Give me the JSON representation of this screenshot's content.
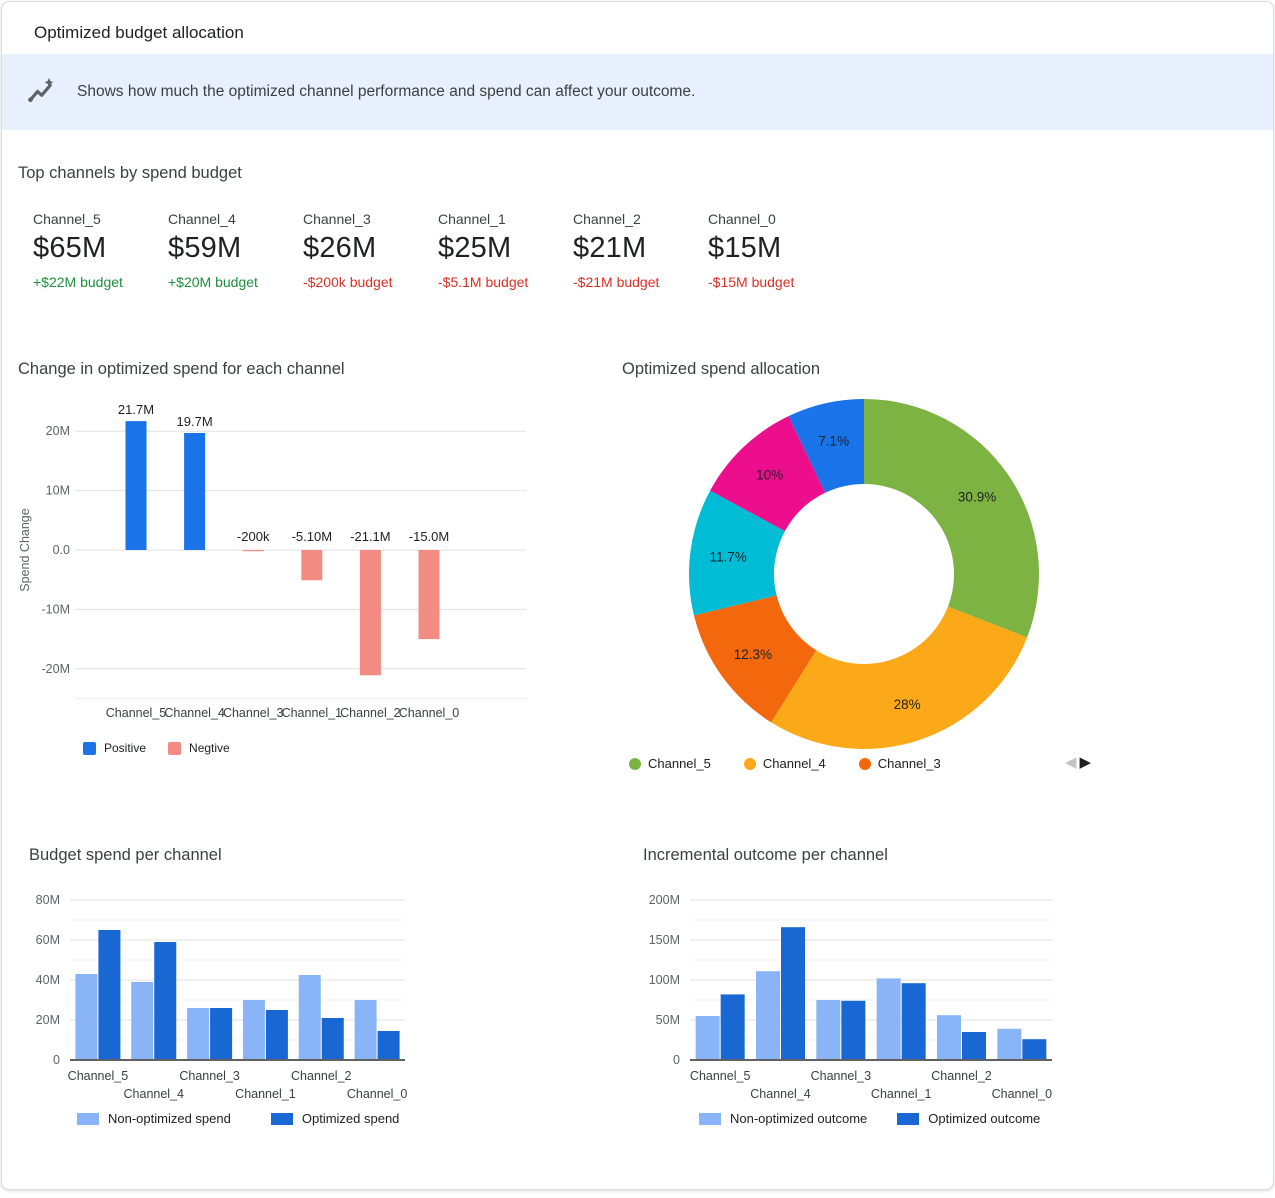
{
  "header": {
    "title": "Optimized budget allocation"
  },
  "banner": {
    "icon": "insights-icon",
    "text": "Shows how much the optimized channel performance and spend can affect your outcome."
  },
  "top_channels": {
    "title": "Top channels by spend budget",
    "items": [
      {
        "name": "Channel_5",
        "value": "$65M",
        "delta": "+$22M budget",
        "direction": "positive"
      },
      {
        "name": "Channel_4",
        "value": "$59M",
        "delta": "+$20M budget",
        "direction": "positive"
      },
      {
        "name": "Channel_3",
        "value": "$26M",
        "delta": "-$200k budget",
        "direction": "negative"
      },
      {
        "name": "Channel_1",
        "value": "$25M",
        "delta": "-$5.1M budget",
        "direction": "negative"
      },
      {
        "name": "Channel_2",
        "value": "$21M",
        "delta": "-$21M budget",
        "direction": "negative"
      },
      {
        "name": "Channel_0",
        "value": "$15M",
        "delta": "-$15M budget",
        "direction": "negative"
      }
    ]
  },
  "pager": {
    "prev": "◀",
    "next": "▶"
  },
  "chart_data": [
    {
      "id": "spend_change",
      "type": "bar",
      "title": "Change in optimized spend for each channel",
      "ylabel": "Spend Change",
      "unit": "M",
      "ylim": [
        -25,
        25
      ],
      "grid": true,
      "categories": [
        "Channel_5",
        "Channel_4",
        "Channel_3",
        "Channel_1",
        "Channel_2",
        "Channel_0"
      ],
      "values": [
        21.7,
        19.7,
        -0.2,
        -5.1,
        -21.1,
        -15.0
      ],
      "value_labels": [
        "21.7M",
        "19.7M",
        "-200k",
        "-5.10M",
        "-21.1M",
        "-15.0M"
      ],
      "yticks": [
        {
          "v": 20,
          "label": "20M"
        },
        {
          "v": 10,
          "label": "10M"
        },
        {
          "v": 0,
          "label": "0.0"
        },
        {
          "v": -10,
          "label": "-10M"
        },
        {
          "v": -20,
          "label": "-20M"
        }
      ],
      "legend": [
        {
          "label": "Positive",
          "color": "#1A73E8"
        },
        {
          "label": "Negtive",
          "color": "#F28B82"
        }
      ]
    },
    {
      "id": "spend_allocation",
      "type": "pie",
      "title": "Optimized spend allocation",
      "donut": true,
      "slices": [
        {
          "label": "Channel_5",
          "pct": 30.9,
          "pct_label": "30.9%",
          "color": "#7CB342"
        },
        {
          "label": "Channel_4",
          "pct": 28.0,
          "pct_label": "28%",
          "color": "#FBA919"
        },
        {
          "label": "Channel_3",
          "pct": 12.3,
          "pct_label": "12.3%",
          "color": "#F3680D"
        },
        {
          "label": "",
          "pct": 11.7,
          "pct_label": "11.7%",
          "color": "#00BCD4"
        },
        {
          "label": "",
          "pct": 10.0,
          "pct_label": "10%",
          "color": "#EC0E8C"
        },
        {
          "label": "",
          "pct": 7.1,
          "pct_label": "7.1%",
          "color": "#1A73E8"
        }
      ],
      "legend": [
        "Channel_5",
        "Channel_4",
        "Channel_3"
      ],
      "legend_position": "bottom"
    },
    {
      "id": "budget_spend",
      "type": "bar",
      "title": "Budget spend per channel",
      "unit": "M",
      "ylim": [
        0,
        80
      ],
      "grid": true,
      "categories": [
        "Channel_5",
        "Channel_4",
        "Channel_3",
        "Channel_1",
        "Channel_2",
        "Channel_0"
      ],
      "series": [
        {
          "name": "Non-optimized spend",
          "color": "#8AB4F8",
          "values": [
            43,
            39,
            26,
            30,
            42.5,
            30
          ]
        },
        {
          "name": "Optimized spend",
          "color": "#1967D2",
          "values": [
            65,
            59,
            26,
            25,
            21,
            14.5
          ]
        }
      ],
      "yticks": {
        "major": [
          {
            "v": 0,
            "label": "0"
          },
          {
            "v": 20,
            "label": "20M"
          },
          {
            "v": 40,
            "label": "40M"
          },
          {
            "v": 60,
            "label": "60M"
          },
          {
            "v": 80,
            "label": "80M"
          }
        ],
        "minor": [
          10,
          30,
          50,
          70
        ]
      }
    },
    {
      "id": "incremental_outcome",
      "type": "bar",
      "title": "Incremental outcome per channel",
      "unit": "M",
      "ylim": [
        0,
        200
      ],
      "grid": true,
      "categories": [
        "Channel_5",
        "Channel_4",
        "Channel_3",
        "Channel_1",
        "Channel_2",
        "Channel_0"
      ],
      "series": [
        {
          "name": "Non-optimized outcome",
          "color": "#8AB4F8",
          "values": [
            55,
            111,
            75,
            102,
            56,
            39
          ]
        },
        {
          "name": "Optimized outcome",
          "color": "#1967D2",
          "values": [
            82,
            166,
            74,
            96,
            35,
            26
          ]
        }
      ],
      "yticks": {
        "major": [
          {
            "v": 0,
            "label": "0"
          },
          {
            "v": 50,
            "label": "50M"
          },
          {
            "v": 100,
            "label": "100M"
          },
          {
            "v": 150,
            "label": "150M"
          },
          {
            "v": 200,
            "label": "200M"
          }
        ],
        "minor": [
          25,
          75,
          125,
          175
        ]
      }
    }
  ]
}
